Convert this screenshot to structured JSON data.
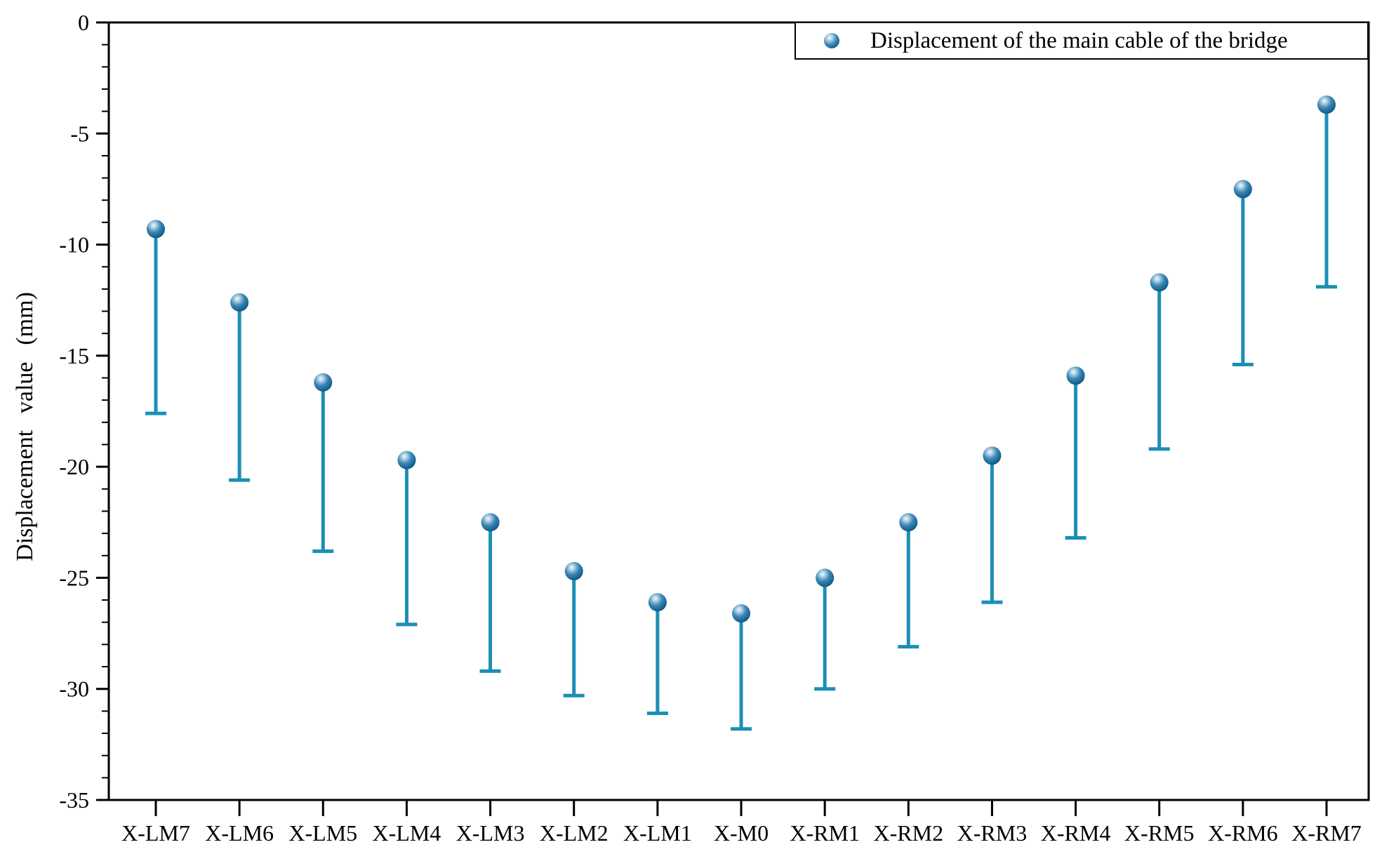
{
  "y_axis": {
    "title": "Displacement value (mm)",
    "min": -35,
    "max": 0,
    "minor_tick_step": 1
  },
  "x_axis": {
    "tick_labels": [
      "X-LM7",
      "X-LM6",
      "X-LM5",
      "X-LM4",
      "X-LM3",
      "X-LM2",
      "X-LM1",
      "X-M0",
      "X-RM1",
      "X-RM2",
      "X-RM3",
      "X-RM4",
      "X-RM5",
      "X-RM6",
      "X-RM7"
    ]
  },
  "legend": {
    "label": "Displacement of the main cable of the bridge",
    "marker": "sphere-icon",
    "position": "top-right"
  },
  "colors": {
    "marker_base": "#135f8e",
    "marker_dark": "#0a466d",
    "marker_highlight": "#f2f8fb",
    "stem": "#1b8fb4",
    "axis": "#000000",
    "text": "#000000",
    "background": "#ffffff"
  },
  "chart_data": {
    "type": "scatter",
    "subtype": "points-with-drop-lines-to-lower-bound",
    "title": "",
    "xlabel": "",
    "ylabel": "Displacement value (mm)",
    "ylim": [
      -35,
      0
    ],
    "y_major_ticks": [
      0,
      -5,
      -10,
      -15,
      -20,
      -25,
      -30,
      -35
    ],
    "y_minor_step": 1,
    "grid": false,
    "legend_position": "top-right",
    "categories": [
      "X-LM7",
      "X-LM6",
      "X-LM5",
      "X-LM4",
      "X-LM3",
      "X-LM2",
      "X-LM1",
      "X-M0",
      "X-RM1",
      "X-RM2",
      "X-RM3",
      "X-RM4",
      "X-RM5",
      "X-RM6",
      "X-RM7"
    ],
    "series": [
      {
        "name": "Displacement of the main cable of the bridge",
        "marker": "sphere",
        "values": [
          -9.3,
          -12.6,
          -16.2,
          -19.7,
          -22.5,
          -24.7,
          -26.1,
          -26.6,
          -25.0,
          -22.5,
          -19.5,
          -15.9,
          -11.7,
          -7.5,
          -3.7
        ],
        "lower_bounds": [
          -17.6,
          -20.6,
          -23.8,
          -27.1,
          -29.2,
          -30.3,
          -31.1,
          -31.8,
          -30.0,
          -28.1,
          -26.1,
          -23.2,
          -19.2,
          -15.4,
          -11.9
        ]
      }
    ]
  }
}
